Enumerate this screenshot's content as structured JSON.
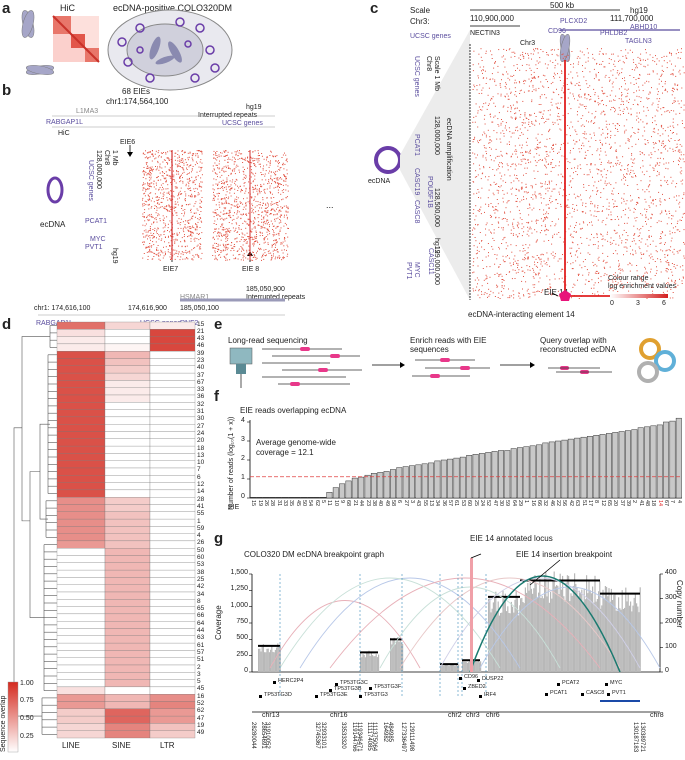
{
  "panels": {
    "a": "a",
    "b": "b",
    "c": "c",
    "d": "d",
    "e": "e",
    "f": "f",
    "g": "g"
  },
  "a": {
    "hic": "HiC",
    "cell": "ecDNA-positive COLO320DM"
  },
  "b": {
    "eies": "68 EIEs",
    "coord_top": "chr1:174,564,100",
    "hg19": "hg19",
    "interrupted": "Interrupted repeats",
    "gene_l1": "L1MA3",
    "gene_rab": "RABGAP1L",
    "ucsc": "UCSC genes",
    "hic": "HiC",
    "eie6": "EIE6",
    "scale": "1 Mb",
    "chr8": "Chr8",
    "coord_128": "128,000,000",
    "ucsc_v": "UCSC genes",
    "pcat": "PCAT1",
    "myc": "MYC",
    "pvt": "PVT1",
    "hg19_v": "hg19",
    "ecdna": "ecDNA",
    "dots": "...",
    "eie7": "EIE7",
    "eie8": "EIE 8",
    "bot_c1": "chr1: 174,616,100",
    "bot_c2": "174,616,900",
    "bot_c3": "185,050,100",
    "bot_c4": "185,050,900",
    "bot_rab": "RABGAP1L",
    "bot_ucsc": "UCSC genes",
    "bot_hsmar": "HSMAR1",
    "bot_rnf": "RNF2",
    "bot_int": "Interrupted repeats",
    "ecdna_ring": "ecDNA"
  },
  "c": {
    "scale_lbl": "Scale",
    "scale_val": "500 kb",
    "hg19": "hg19",
    "chr3": "Chr3:",
    "c1": "110,900,000",
    "c2": "111,700,000",
    "nectin": "NECTIN3",
    "plcxd2": "PLCXD2",
    "abhd10": "ABHD10",
    "cd96": "CD96",
    "phldb2": "PHLDB2",
    "tagln3": "TAGLN3",
    "ucsc": "UCSC genes",
    "chr3b": "Chr3",
    "scale_v": "Scale 1 Mb",
    "chr8": "Chr8",
    "ucsc_v": "UCSC genes",
    "c128": "128,000,000",
    "c128b": "128,500,000",
    "c129": "129,000,000",
    "amp": "ecDNA amplification",
    "pcat": "PCAT1",
    "casc19": "CASC19",
    "pou": "POU5F1B",
    "casc8": "CASC8",
    "casc11": "CASC11",
    "myc": "MYC",
    "pvt": "PVT1",
    "hg19v": "hg19",
    "eie14": "EIE 14",
    "colour": "Colour range",
    "logenr": "log enrichment values",
    "t0": "0",
    "t3": "3",
    "t6": "6",
    "footer": "ecDNA-interacting element 14"
  },
  "d": {
    "rows": [
      "15",
      "21",
      "43",
      "46",
      "39",
      "23",
      "40",
      "37",
      "67",
      "33",
      "36",
      "32",
      "31",
      "30",
      "27",
      "24",
      "20",
      "18",
      "13",
      "10",
      "7",
      "6",
      "12",
      "14",
      "28",
      "41",
      "55",
      "1",
      "59",
      "4",
      "26",
      "50",
      "60",
      "53",
      "38",
      "25",
      "42",
      "34",
      "8",
      "65",
      "66",
      "64",
      "44",
      "63",
      "61",
      "57",
      "51",
      "2",
      "3",
      "5",
      "45",
      "16",
      "52",
      "62",
      "47",
      "19",
      "49"
    ],
    "cols": [
      "LINE",
      "SINE",
      "LTR"
    ],
    "legend_title": "Sequence overlap",
    "legend_ticks": [
      "1.00",
      "0.75",
      "0.50",
      "0.25"
    ]
  },
  "e": {
    "lr": "Long-read sequencing",
    "enrich": "Enrich reads with EIE sequences",
    "query": "Query overlap with reconstructed ecDNA"
  },
  "f": {
    "title": "EIE reads overlapping ecDNA",
    "ylabel": "Number of reads (log₁₀(1 + x))",
    "avg1": "Average genome-wide",
    "avg2": "coverage = 12.1",
    "yt": [
      "0",
      "1",
      "2",
      "3",
      "4"
    ],
    "eie": "EIE"
  },
  "chart_data": {
    "type": "bar",
    "title": "EIE reads overlapping ecDNA",
    "ylabel": "Number of reads (log10(1 + x))",
    "xlabel": "EIE",
    "ylim": [
      0,
      4.2
    ],
    "reference_line": 1.12,
    "categories": [
      "15",
      "19",
      "26",
      "28",
      "31",
      "33",
      "35",
      "45",
      "50",
      "54",
      "62",
      "5",
      "11",
      "10",
      "9",
      "68",
      "21",
      "44",
      "23",
      "38",
      "40",
      "49",
      "58",
      "6",
      "27",
      "3",
      "43",
      "55",
      "13",
      "34",
      "36",
      "57",
      "61",
      "53",
      "60",
      "25",
      "24",
      "52",
      "47",
      "30",
      "59",
      "64",
      "29",
      "1",
      "16",
      "66",
      "32",
      "46",
      "22",
      "56",
      "42",
      "63",
      "51",
      "17",
      "8",
      "12",
      "65",
      "20",
      "37",
      "39",
      "2",
      "41",
      "48",
      "18",
      "14",
      "67",
      "7",
      "4"
    ],
    "values": [
      0,
      0,
      0,
      0,
      0,
      0,
      0,
      0,
      0,
      0,
      0,
      0,
      0.3,
      0.55,
      0.75,
      0.9,
      1.05,
      1.1,
      1.2,
      1.3,
      1.35,
      1.4,
      1.5,
      1.6,
      1.65,
      1.7,
      1.75,
      1.8,
      1.85,
      1.95,
      2.0,
      2.05,
      2.1,
      2.15,
      2.25,
      2.3,
      2.35,
      2.4,
      2.45,
      2.5,
      2.5,
      2.6,
      2.65,
      2.7,
      2.75,
      2.8,
      2.9,
      2.95,
      3.0,
      3.05,
      3.1,
      3.15,
      3.2,
      3.25,
      3.3,
      3.35,
      3.4,
      3.45,
      3.5,
      3.55,
      3.6,
      3.7,
      3.75,
      3.8,
      3.85,
      4.0,
      4.05,
      4.2
    ]
  },
  "g": {
    "title": "COLO320 DM ecDNA breakpoint graph",
    "annot": "EIE 14 annotated locus",
    "insert": "EIE 14 insertion breakpoint",
    "ylab": "Coverage",
    "yt": [
      "0",
      "250",
      "500",
      "750",
      "1,000",
      "1,250",
      "1,500"
    ],
    "rlab": "Copy number",
    "rt": [
      "0",
      "100",
      "200",
      "300",
      "400"
    ],
    "genes": [
      "HERC2P4",
      "TP53TG3C",
      "TP53TG3B",
      "TP53TG3D",
      "TP53TG3E",
      "TP53TG3",
      "TP53TG3F",
      "CD96",
      "DUSP22",
      "ZBED2",
      "IRF4",
      "PCAT2",
      "PCAT1",
      "CASC8",
      "MYC",
      "PVT1"
    ],
    "chrs": [
      "chr13",
      "chr16",
      "chr2",
      "chr3",
      "chr6",
      "chr8"
    ],
    "coords": [
      "28280044",
      "28654691",
      "31910052",
      "32745367",
      "32933101",
      "33533320",
      "119144766",
      "119346471",
      "111174085",
      "111375064",
      "164982",
      "484985",
      "127336497",
      "129111498",
      "130187183",
      "130389721"
    ]
  }
}
